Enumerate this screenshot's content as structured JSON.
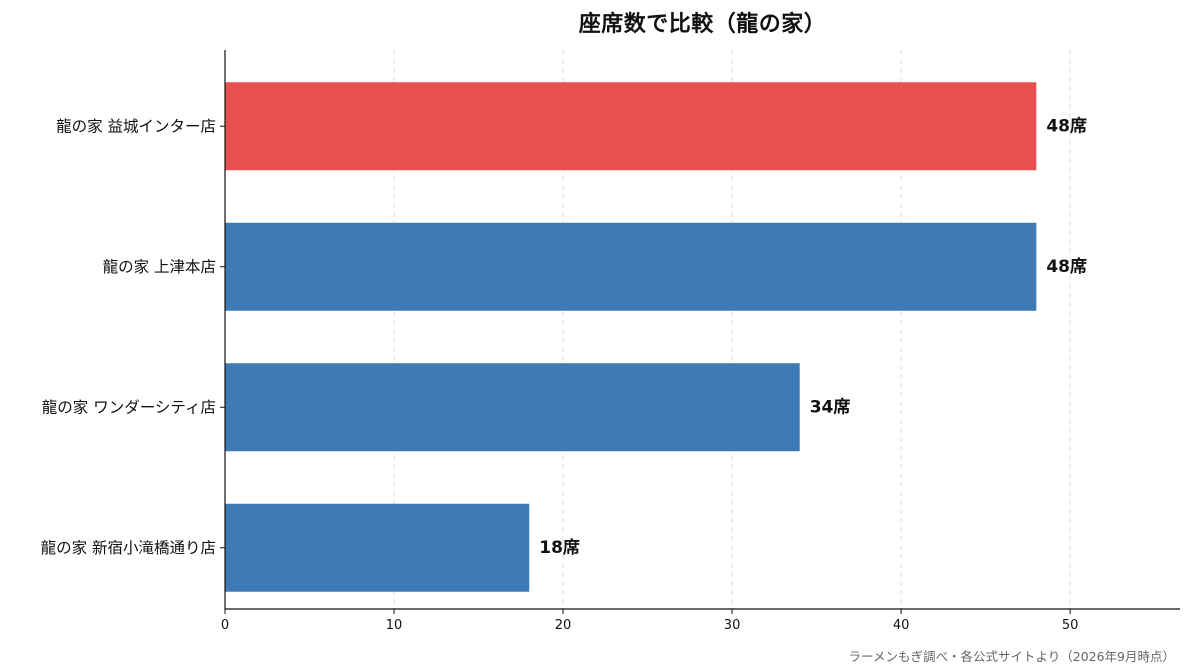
{
  "chart_data": {
    "type": "bar",
    "orientation": "horizontal",
    "title": "座席数で比較（龍の家）",
    "xlabel": "",
    "ylabel": "",
    "categories": [
      "龍の家 益城インター店",
      "龍の家 上津本店",
      "龍の家 ワンダーシティ店",
      "龍の家 新宿小滝橋通り店"
    ],
    "values": [
      48,
      48,
      34,
      18
    ],
    "value_labels": [
      "48席",
      "48席",
      "34席",
      "18席"
    ],
    "highlight_index": 0,
    "colors": {
      "highlight": "#E85050",
      "default": "#3E7AB6"
    },
    "xlim": [
      0,
      56.5
    ],
    "xticks": [
      0,
      10,
      20,
      30,
      40,
      50
    ],
    "grid": "vertical-dashed",
    "legend": "none"
  },
  "source_note": "ラーメンもぎ調べ・各公式サイトより（2026年9月時点）"
}
